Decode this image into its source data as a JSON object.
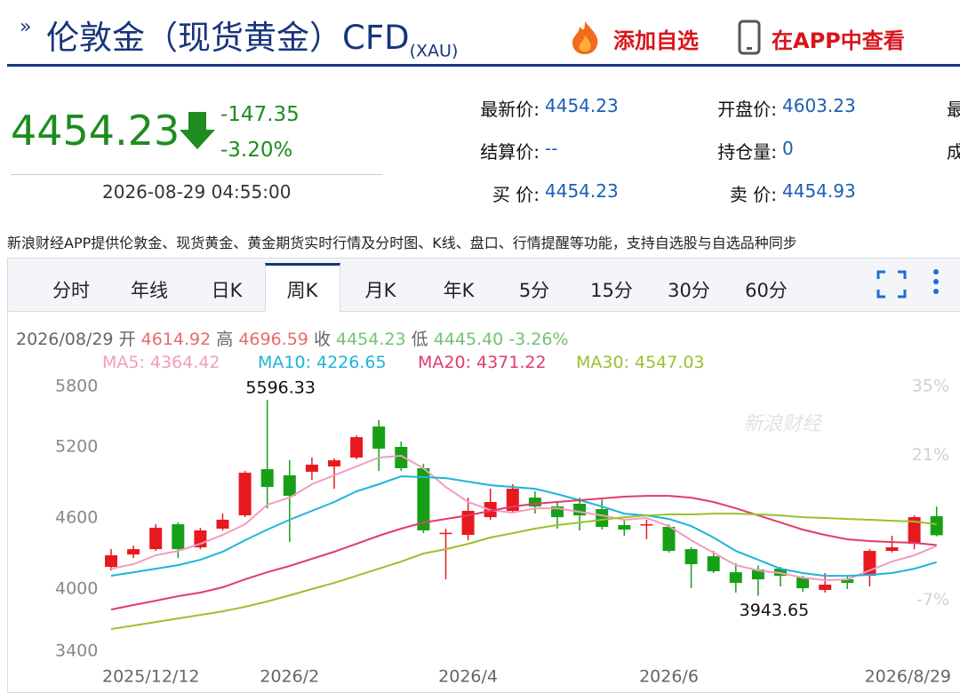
{
  "header": {
    "title": "伦敦金（现货黄金）CFD",
    "code": "(XAU)",
    "add": "添加自选",
    "app": "在APP中查看"
  },
  "quote": {
    "price": "4454.23",
    "change": "-147.35",
    "percent": "-3.20%",
    "time": "2026-08-29 04:55:00",
    "fields": [
      [
        {
          "label": "最新价:",
          "value": "4454.23"
        },
        {
          "label": "开盘价:",
          "value": "4603.23"
        },
        {
          "label": "最"
        }
      ],
      [
        {
          "label": "结算价:",
          "value": "--"
        },
        {
          "label": "持仓量:",
          "value": "0"
        },
        {
          "label": "成"
        }
      ],
      [
        {
          "label": "买 价:",
          "value": "4454.23"
        },
        {
          "label": "卖 价:",
          "value": "4454.93"
        }
      ]
    ]
  },
  "notice": "新浪财经APP提供伦敦金、现货黄金、黄金期货实时行情及分时图、K线、盘口、行情提醒等功能，支持自选股与自选品种同步",
  "tabs": [
    "分时",
    "年线",
    "日K",
    "周K",
    "月K",
    "年K",
    "5分",
    "15分",
    "30分",
    "60分"
  ],
  "chart_data": {
    "type": "candlestick",
    "info": {
      "date": "2026/08/29",
      "open_label": "开",
      "open": "4614.92",
      "high_label": "高",
      "high": "4696.59",
      "close_label": "收",
      "close": "4454.23",
      "low_label": "低",
      "low": "4445.40",
      "percent": "-3.26%"
    },
    "watermark": "新浪财经",
    "categories": [
      "2025/12/12",
      null,
      null,
      null,
      null,
      null,
      null,
      null,
      "2026/2",
      null,
      null,
      null,
      null,
      null,
      null,
      null,
      "2026/4",
      null,
      null,
      null,
      null,
      null,
      null,
      null,
      null,
      "2026/6",
      null,
      null,
      null,
      null,
      null,
      null,
      null,
      null,
      null,
      null,
      null,
      "2026/8/29"
    ],
    "open": [
      4187,
      4292,
      4337,
      4547,
      4352,
      4510,
      4622,
      5012,
      4960,
      4990,
      5035,
      5110,
      5372,
      5200,
      5020,
      4467,
      4457,
      4607,
      4660,
      4772,
      4697,
      4720,
      4675,
      4540,
      4540,
      4525,
      4337,
      4277,
      4142,
      4165,
      4172,
      4097,
      3992,
      4082,
      4112,
      4322,
      4382,
      4614.92
    ],
    "high": [
      4337,
      4367,
      4547,
      4562,
      4517,
      4637,
      4997,
      5596.33,
      5087,
      5110,
      5102,
      5297,
      5425,
      5245,
      5057,
      4510,
      4772,
      4847,
      4885,
      4825,
      4735,
      4772,
      4757,
      4577,
      4585,
      4547,
      4352,
      4322,
      4217,
      4200,
      4187,
      4112,
      4135,
      4112,
      4337,
      4450,
      4622,
      4696.59
    ],
    "low": [
      4157,
      4262,
      4322,
      4262,
      4337,
      4495,
      4607,
      4682,
      4397,
      4922,
      4847,
      5095,
      4997,
      4997,
      4472,
      4082,
      4412,
      4585,
      4637,
      4637,
      4510,
      4495,
      4502,
      4450,
      4420,
      4307,
      4007,
      4135,
      3970,
      3943.65,
      4022,
      3977,
      3970,
      4000,
      4022,
      4307,
      4337,
      4445.4
    ],
    "close": [
      4285,
      4337,
      4517,
      4337,
      4495,
      4585,
      4982,
      4862,
      4787,
      5050,
      5087,
      5282,
      5185,
      5020,
      4495,
      4475,
      4660,
      4735,
      4847,
      4697,
      4607,
      4622,
      4525,
      4502,
      4547,
      4322,
      4210,
      4150,
      4052,
      4082,
      4112,
      4007,
      4037,
      4052,
      4322,
      4352,
      4607,
      4454.23
    ],
    "up_color": "#e8191e",
    "down_color": "#17a017",
    "series": [
      {
        "name": "MA5: 4364.42",
        "color": "#f29cbf",
        "values": [
          4172,
          4210,
          4285,
          4322,
          4382,
          4457,
          4547,
          4712,
          4772,
          4885,
          4960,
          5035,
          5110,
          5125,
          5020,
          4862,
          4735,
          4667,
          4645,
          4682,
          4682,
          4652,
          4622,
          4585,
          4600,
          4532,
          4412,
          4307,
          4202,
          4157,
          4135,
          4097,
          4075,
          4082,
          4157,
          4232,
          4285,
          4364.42
        ]
      },
      {
        "name": "MA10: 4226.65",
        "color": "#1db4d8",
        "values": [
          4112,
          4142,
          4172,
          4202,
          4247,
          4315,
          4412,
          4502,
          4585,
          4660,
          4735,
          4825,
          4885,
          4952,
          4945,
          4937,
          4907,
          4877,
          4862,
          4847,
          4802,
          4750,
          4697,
          4637,
          4622,
          4592,
          4532,
          4435,
          4322,
          4247,
          4172,
          4135,
          4112,
          4112,
          4120,
          4135,
          4172,
          4226.65
        ]
      },
      {
        "name": "MA20: 4371.22",
        "color": "#e03c6a",
        "values": [
          3827,
          3865,
          3902,
          3940,
          3970,
          4015,
          4082,
          4142,
          4195,
          4255,
          4315,
          4382,
          4450,
          4510,
          4562,
          4592,
          4622,
          4660,
          4697,
          4720,
          4735,
          4750,
          4765,
          4780,
          4787,
          4787,
          4772,
          4735,
          4682,
          4622,
          4562,
          4502,
          4457,
          4420,
          4405,
          4397,
          4390,
          4371.22
        ]
      },
      {
        "name": "MA30: 4547.03",
        "color": "#9ac12d",
        "values": [
          3662,
          3692,
          3722,
          3752,
          3782,
          3812,
          3850,
          3895,
          3947,
          4000,
          4052,
          4112,
          4172,
          4232,
          4300,
          4337,
          4382,
          4435,
          4472,
          4510,
          4540,
          4562,
          4585,
          4607,
          4622,
          4630,
          4630,
          4637,
          4637,
          4630,
          4622,
          4607,
          4600,
          4592,
          4585,
          4577,
          4570,
          4547.03
        ]
      }
    ],
    "ylim": [
      3400,
      5800
    ],
    "yticks": [
      3400,
      4000,
      4600,
      5200,
      5800
    ],
    "y2lim": [
      -18.6,
      36.4
    ],
    "y2ticks": [
      {
        "value": 35,
        "label": "35%"
      },
      {
        "value": 21,
        "label": "21%"
      },
      {
        "value": -7,
        "label": "-7%"
      }
    ],
    "grid": false
  }
}
